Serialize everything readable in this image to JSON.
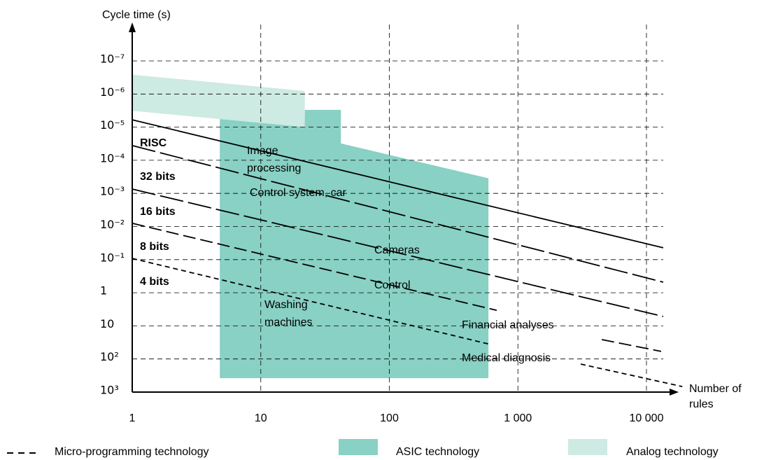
{
  "chart_data": {
    "type": "line",
    "y_label": "Cycle time (s)",
    "x_label": [
      "Number of",
      "rules"
    ],
    "xscale": "log",
    "yscale": "log",
    "y_inverted": true,
    "grid": true,
    "xlim": [
      1,
      10000
    ],
    "ylim": [
      1000,
      1e-07
    ],
    "xticks": [
      1,
      10,
      100,
      {
        "value": 1000,
        "label": "1 000"
      },
      {
        "value": 10000,
        "label": "10 000"
      }
    ],
    "yticks": [
      {
        "value": 1e-07,
        "label": "10⁻⁷"
      },
      {
        "value": 1e-06,
        "label": "10⁻⁶"
      },
      {
        "value": 1e-05,
        "label": "10⁻⁵"
      },
      {
        "value": 0.0001,
        "label": "10⁻⁴"
      },
      {
        "value": 0.001,
        "label": "10⁻³"
      },
      {
        "value": 0.01,
        "label": "10⁻²"
      },
      {
        "value": 0.1,
        "label": "10⁻¹"
      },
      1,
      10,
      {
        "value": 100,
        "label": "10²"
      },
      {
        "value": 1000,
        "label": "10³"
      }
    ],
    "series": [
      {
        "name": "RISC",
        "color": "#000000",
        "dash": "solid",
        "x": [
          1,
          13500
        ],
        "values": [
          6e-06,
          0.044
        ]
      },
      {
        "name": "32 bits",
        "color": "#000000",
        "dash": "long",
        "x": [
          1,
          13500
        ],
        "values": [
          3.6e-05,
          0.48
        ]
      },
      {
        "name": "16 bits",
        "color": "#000000",
        "dash": "long",
        "x": [
          1,
          13500
        ],
        "values": [
          0.00074,
          5.2
        ]
      },
      {
        "name": "8 bits",
        "color": "#000000",
        "dash": "medium",
        "x": [
          1,
          684,
          null,
          4490,
          13000
        ],
        "values": [
          0.008,
          3.4,
          null,
          26,
          59
        ]
      },
      {
        "name": "4 bits",
        "color": "#000000",
        "dash": "short",
        "x": [
          1,
          604,
          null,
          3080,
          19000
        ],
        "values": [
          0.092,
          36,
          null,
          143,
          680
        ]
      }
    ],
    "regions": [
      {
        "name": "ASIC technology",
        "color": "#88d1c4",
        "x": [
          4.8,
          4.8,
          22,
          22,
          42,
          42,
          590,
          590
        ],
        "values": [
          380,
          5.1e-06,
          5.1e-06,
          3e-06,
          3e-06,
          3.1e-05,
          0.00035,
          380
        ]
      },
      {
        "name": "Analog technology",
        "color": "#cdeae3",
        "x": [
          1,
          22,
          22,
          1
        ],
        "values": [
          2.6e-07,
          8.1e-07,
          1e-05,
          3.2e-06
        ]
      }
    ],
    "legend": [
      {
        "label": "Micro-programming technology",
        "marker": "dashed-line",
        "color": "#000000"
      }
    ],
    "annotations": [
      [
        "Image",
        "processing"
      ],
      [
        "Control system, car"
      ],
      [
        "Cameras"
      ],
      [
        "Control"
      ],
      [
        "Washing",
        "machines"
      ],
      [
        "Financial analyses"
      ],
      [
        "Medical diagnosis"
      ]
    ]
  }
}
